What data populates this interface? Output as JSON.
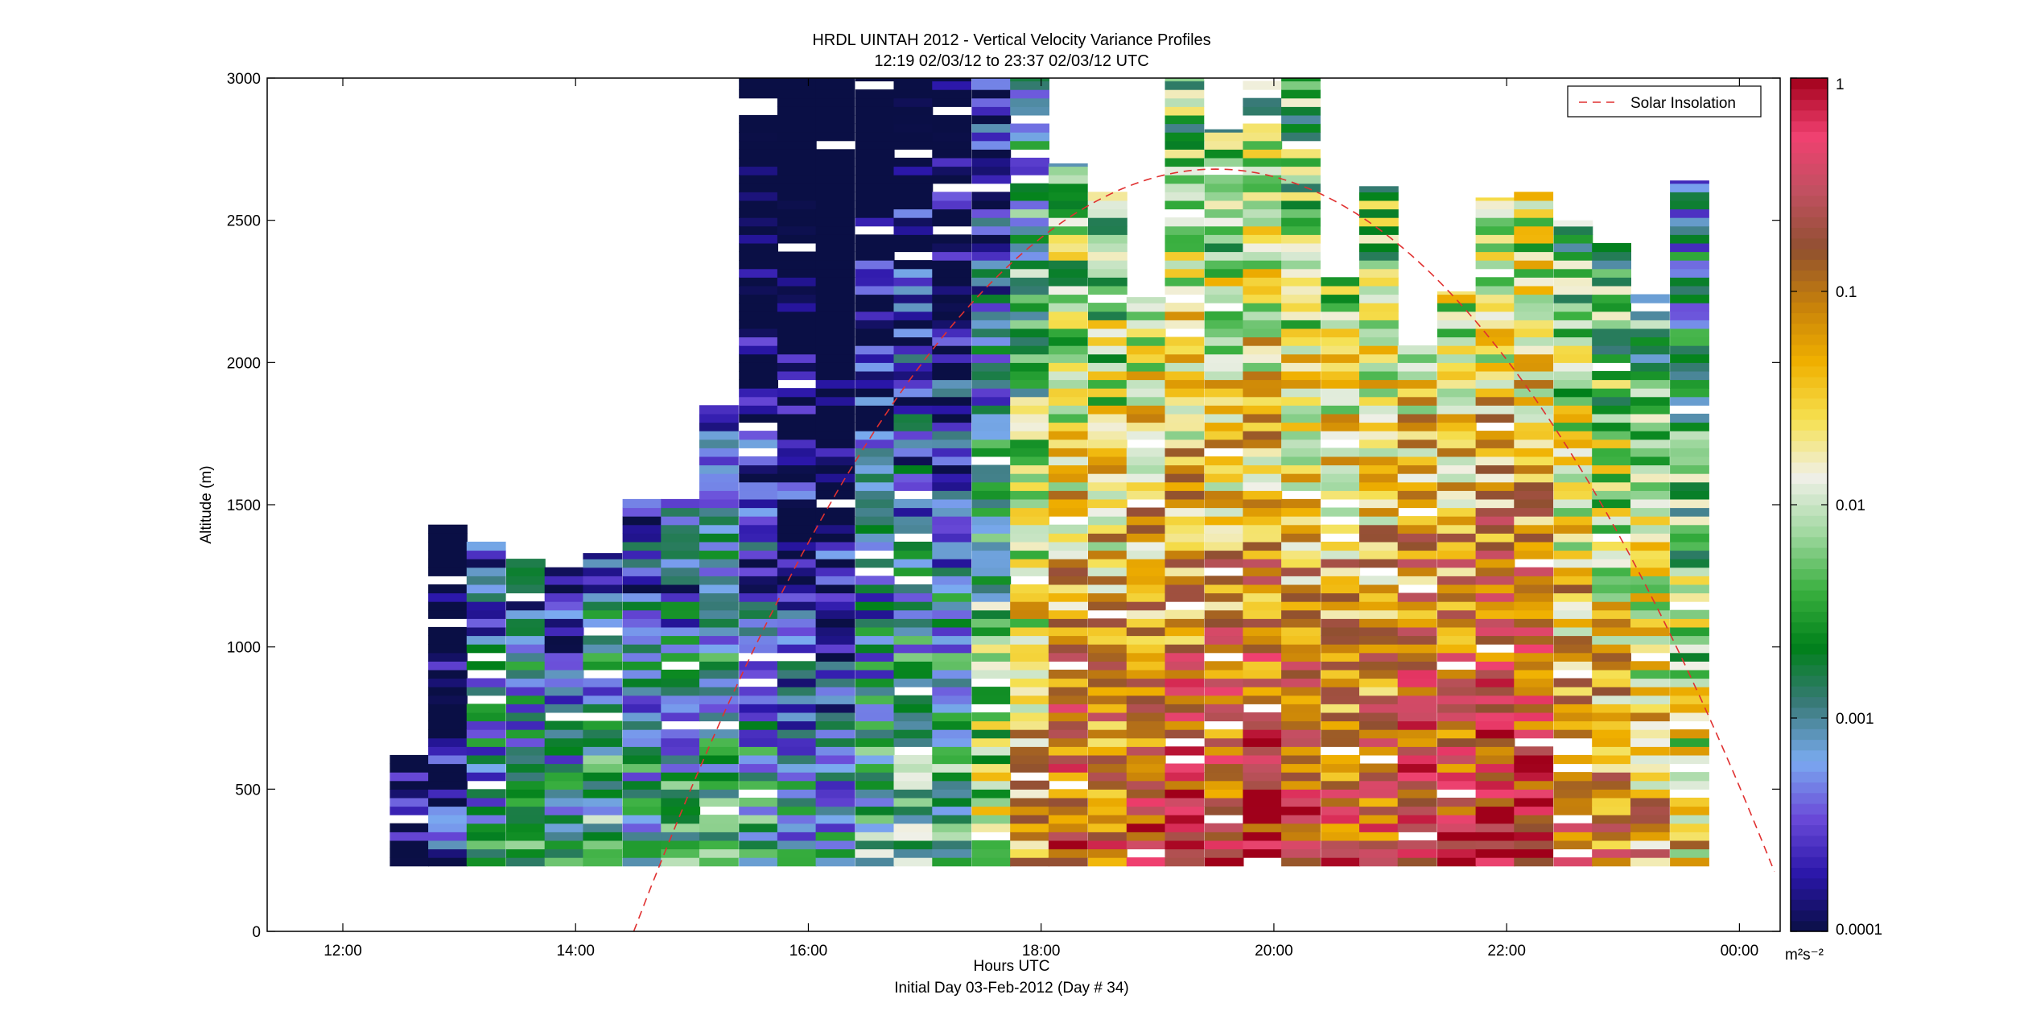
{
  "chart_data": {
    "type": "heatmap",
    "title": "HRDL UINTAH 2012 - Vertical Velocity Variance Profiles",
    "subtitle": "12:19 02/03/12 to 23:37 02/03/12  UTC",
    "xlabel": "Hours UTC",
    "xlabel2": "Initial Day 03-Feb-2012 (Day # 34)",
    "ylabel": "Altitude (m)",
    "colorbar_unit": "m²s⁻²",
    "xlim": [
      11.35,
      24.35
    ],
    "ylim": [
      0,
      3000
    ],
    "x_ticks": [
      12,
      14,
      16,
      18,
      20,
      22,
      24
    ],
    "x_tick_labels": [
      "12:00",
      "14:00",
      "16:00",
      "18:00",
      "20:00",
      "22:00",
      "00:00"
    ],
    "y_ticks": [
      0,
      500,
      1000,
      1500,
      2000,
      2500,
      3000
    ],
    "y_tick_labels": [
      "0",
      "500",
      "1000",
      "1500",
      "2000",
      "2500",
      "3000"
    ],
    "color_scale": "log",
    "color_range": [
      0.0001,
      1
    ],
    "colorbar_ticks": [
      0.0001,
      0.001,
      0.01,
      0.1,
      1
    ],
    "colorbar_tick_labels": [
      "0.0001",
      "0.001",
      "0.01",
      "0.1",
      "1"
    ],
    "colormap_stops": [
      "#0a0f45",
      "#2a16a8",
      "#6a4ad8",
      "#7aaaf0",
      "#3a7a7a",
      "#00801a",
      "#3ab040",
      "#a0d8a0",
      "#f0f0e8",
      "#f5e050",
      "#f0b000",
      "#c8820a",
      "#905030",
      "#c05060",
      "#f04070",
      "#a0001a"
    ],
    "legend": {
      "position": "top-right",
      "entries": [
        {
          "name": "Solar Insolation",
          "color": "#e03030",
          "style": "dashed"
        }
      ]
    },
    "profiles": [
      {
        "time": 12.57,
        "top": 620,
        "trend": -3.8,
        "seed": 11
      },
      {
        "time": 12.9,
        "top": 1430,
        "trend": -3.7,
        "seed": 12
      },
      {
        "time": 13.23,
        "top": 1370,
        "trend": -2.8,
        "seed": 13
      },
      {
        "time": 13.57,
        "top": 1310,
        "trend": -2.6,
        "seed": 14
      },
      {
        "time": 13.9,
        "top": 1280,
        "trend": -2.9,
        "seed": 15
      },
      {
        "time": 14.23,
        "top": 1330,
        "trend": -2.5,
        "seed": 16
      },
      {
        "time": 14.57,
        "top": 1520,
        "trend": -2.7,
        "seed": 17
      },
      {
        "time": 14.9,
        "top": 1520,
        "trend": -2.6,
        "seed": 18
      },
      {
        "time": 15.23,
        "top": 1850,
        "trend": -2.4,
        "seed": 19
      },
      {
        "time": 15.57,
        "top": 3000,
        "trend": -2.7,
        "seed": 20
      },
      {
        "time": 15.9,
        "top": 3000,
        "trend": -2.9,
        "seed": 21
      },
      {
        "time": 16.23,
        "top": 3000,
        "trend": -3.1,
        "seed": 22
      },
      {
        "time": 16.57,
        "top": 3000,
        "trend": -2.5,
        "seed": 23
      },
      {
        "time": 16.9,
        "top": 3000,
        "trend": -2.3,
        "seed": 24
      },
      {
        "time": 17.23,
        "top": 3000,
        "trend": -2.4,
        "seed": 25
      },
      {
        "time": 17.57,
        "top": 3000,
        "trend": -1.8,
        "seed": 26
      },
      {
        "time": 17.9,
        "top": 3000,
        "trend": -1.1,
        "seed": 27
      },
      {
        "time": 18.23,
        "top": 2700,
        "trend": -0.6,
        "seed": 28
      },
      {
        "time": 18.57,
        "top": 2600,
        "trend": -0.7,
        "seed": 29
      },
      {
        "time": 18.9,
        "top": 2230,
        "trend": -0.5,
        "seed": 30
      },
      {
        "time": 19.23,
        "top": 3000,
        "trend": -0.4,
        "seed": 31
      },
      {
        "time": 19.57,
        "top": 2820,
        "trend": -0.5,
        "seed": 32
      },
      {
        "time": 19.9,
        "top": 3000,
        "trend": -0.3,
        "seed": 33
      },
      {
        "time": 20.23,
        "top": 3000,
        "trend": -0.5,
        "seed": 34
      },
      {
        "time": 20.57,
        "top": 2300,
        "trend": -0.6,
        "seed": 35
      },
      {
        "time": 20.9,
        "top": 2620,
        "trend": -0.6,
        "seed": 36
      },
      {
        "time": 21.23,
        "top": 2060,
        "trend": -0.4,
        "seed": 37
      },
      {
        "time": 21.57,
        "top": 2250,
        "trend": -0.4,
        "seed": 38
      },
      {
        "time": 21.9,
        "top": 2580,
        "trend": -0.3,
        "seed": 39
      },
      {
        "time": 22.23,
        "top": 2600,
        "trend": -0.3,
        "seed": 40
      },
      {
        "time": 22.57,
        "top": 2500,
        "trend": -0.8,
        "seed": 41
      },
      {
        "time": 22.9,
        "top": 2440,
        "trend": -1.0,
        "seed": 42
      },
      {
        "time": 23.23,
        "top": 2240,
        "trend": -1.2,
        "seed": 43
      },
      {
        "time": 23.57,
        "top": 2640,
        "trend": -1.5,
        "seed": 44
      }
    ],
    "solar_insolation_curve": {
      "start_time": 14.5,
      "peak_time": 19.5,
      "peak_altitude": 2680,
      "end_time": 24.35
    }
  }
}
